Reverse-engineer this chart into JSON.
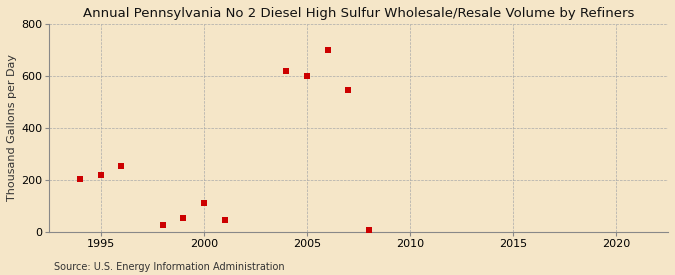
{
  "title": "Annual Pennsylvania No 2 Diesel High Sulfur Wholesale/Resale Volume by Refiners",
  "ylabel": "Thousand Gallons per Day",
  "source": "Source: U.S. Energy Information Administration",
  "background_color": "#f5e6c8",
  "plot_bg_color": "#f5e6c8",
  "scatter_color": "#cc0000",
  "x_data": [
    1994,
    1995,
    1996,
    1998,
    1999,
    2000,
    2001,
    2004,
    2005,
    2006,
    2007,
    2008
  ],
  "y_data": [
    205,
    220,
    255,
    25,
    55,
    110,
    45,
    620,
    600,
    700,
    545,
    8
  ],
  "xlim": [
    1992.5,
    2022.5
  ],
  "ylim": [
    0,
    800
  ],
  "xticks": [
    1995,
    2000,
    2005,
    2010,
    2015,
    2020
  ],
  "yticks": [
    0,
    200,
    400,
    600,
    800
  ],
  "title_fontsize": 9.5,
  "label_fontsize": 8,
  "tick_fontsize": 8,
  "source_fontsize": 7,
  "marker_size": 4.5
}
